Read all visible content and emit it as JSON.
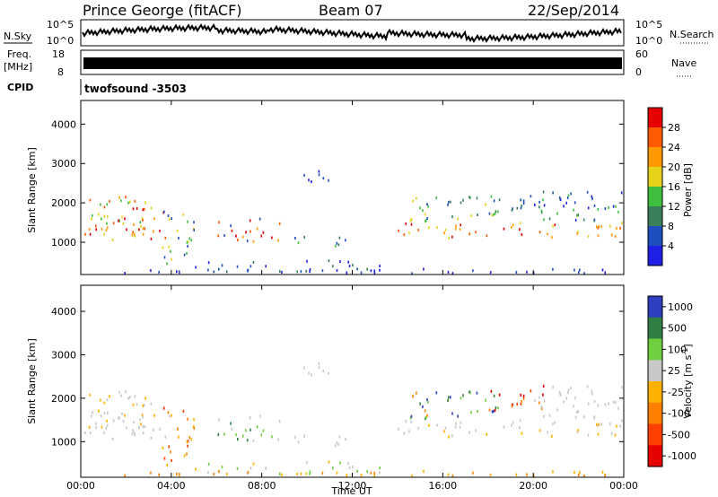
{
  "header": {
    "station": "Prince George (fitACF)",
    "beam": "Beam 07",
    "date": "22/Sep/2014"
  },
  "sidebars": {
    "nsky": "N.Sky",
    "nsearch": "N.Search",
    "freq_top": "Freq.",
    "freq_unit": "[MHz]",
    "nave": "Nave",
    "cpid": "CPID",
    "nsky_ticks": [
      "10^5",
      "10^0"
    ],
    "nsearch_ticks": [
      "10^5",
      "10^0"
    ],
    "freq_ticks": [
      "18",
      "8"
    ],
    "nave_ticks": [
      "60",
      "0"
    ]
  },
  "cpid_text": "twofsound -3503",
  "colors": {
    "power": [
      "#1f1fe6",
      "#1f4fbf",
      "#3a7f5a",
      "#3fbf3f",
      "#e6d21a",
      "#ff9900",
      "#ff5a00",
      "#e60000"
    ],
    "velocity": [
      "#2d3fbf",
      "#2f7f45",
      "#6fcf3f",
      "#c8c8c8",
      "#ffb000",
      "#ff8000",
      "#ff4000",
      "#e60000"
    ],
    "axis": "#000000"
  },
  "chart_data": [
    {
      "type": "heatmap",
      "panel": "power",
      "ylabel": "Slant Range [km]",
      "xlabel": "",
      "x_ticks": [
        "00:00",
        "04:00",
        "08:00",
        "12:00",
        "16:00",
        "20:00",
        "00:00"
      ],
      "y_ticks": [
        "1000",
        "2000",
        "3000",
        "4000"
      ],
      "ylim": [
        180,
        4600
      ],
      "colorbar": {
        "label": "Power [dB]",
        "ticks": [
          "4",
          "8",
          "12",
          "16",
          "20",
          "24",
          "28"
        ],
        "range": [
          0,
          32
        ]
      }
    },
    {
      "type": "heatmap",
      "panel": "velocity",
      "ylabel": "Slant Range [km]",
      "xlabel": "Time UT",
      "x_ticks": [
        "00:00",
        "04:00",
        "08:00",
        "12:00",
        "16:00",
        "20:00",
        "00:00"
      ],
      "y_ticks": [
        "1000",
        "2000",
        "3000",
        "4000"
      ],
      "ylim": [
        180,
        4600
      ],
      "colorbar": {
        "label": "Velocity [m s^-1]",
        "ticks": [
          "1000",
          "500",
          "100",
          "25",
          "-25",
          "-100",
          "-500",
          "-1000"
        ]
      }
    }
  ]
}
